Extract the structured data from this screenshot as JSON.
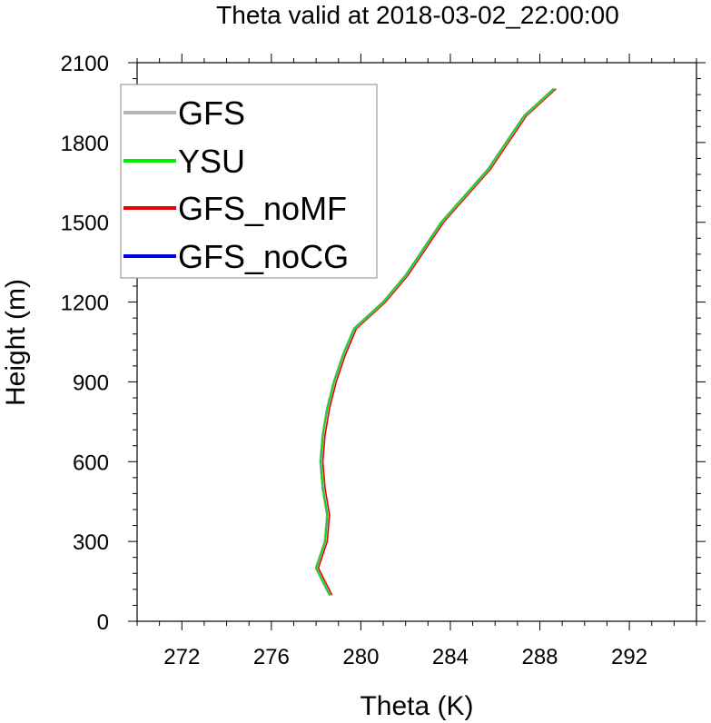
{
  "chart_data": {
    "type": "line",
    "title": "Theta valid at 2018-03-02_22:00:00",
    "xlabel": "Theta (K)",
    "ylabel": "Height (m)",
    "xlim": [
      270,
      295
    ],
    "ylim": [
      0,
      2100
    ],
    "xticks": [
      272,
      276,
      280,
      284,
      288,
      292
    ],
    "yticks": [
      0,
      300,
      600,
      900,
      1200,
      1500,
      1800,
      2100
    ],
    "grid": false,
    "legend_position": "top-left",
    "series": [
      {
        "name": "GFS",
        "color": "#b4b4b4",
        "x": [
          278.6,
          278.0,
          278.4,
          278.5,
          278.3,
          278.2,
          278.3,
          278.5,
          278.8,
          279.2,
          279.7,
          281.0,
          282.0,
          283.6,
          285.7,
          287.3,
          288.6
        ],
        "y": [
          100,
          200,
          300,
          400,
          500,
          600,
          700,
          800,
          900,
          1000,
          1100,
          1200,
          1300,
          1500,
          1700,
          1900,
          2000
        ]
      },
      {
        "name": "YSU",
        "color": "#00ee00",
        "x": [
          278.6,
          278.0,
          278.4,
          278.5,
          278.3,
          278.2,
          278.3,
          278.5,
          278.8,
          279.2,
          279.7,
          281.0,
          282.0,
          283.6,
          285.7,
          287.3,
          288.6
        ],
        "y": [
          100,
          200,
          300,
          400,
          500,
          600,
          700,
          800,
          900,
          1000,
          1100,
          1200,
          1300,
          1500,
          1700,
          1900,
          2000
        ]
      },
      {
        "name": "GFS_noMF",
        "color": "#ee0000",
        "x": [
          278.7,
          278.1,
          278.5,
          278.6,
          278.4,
          278.3,
          278.4,
          278.6,
          278.9,
          279.3,
          279.8,
          281.1,
          282.1,
          283.7,
          285.8,
          287.4,
          288.7
        ],
        "y": [
          100,
          200,
          300,
          400,
          500,
          600,
          700,
          800,
          900,
          1000,
          1100,
          1200,
          1300,
          1500,
          1700,
          1900,
          2000
        ]
      },
      {
        "name": "GFS_noCG",
        "color": "#0000ee",
        "x": [
          278.6,
          278.0,
          278.4,
          278.5,
          278.3,
          278.2,
          278.3,
          278.5,
          278.8,
          279.2,
          279.7,
          281.0,
          282.0,
          283.6,
          285.7,
          287.3,
          288.6
        ],
        "y": [
          100,
          200,
          300,
          400,
          500,
          600,
          700,
          800,
          900,
          1000,
          1100,
          1200,
          1300,
          1500,
          1700,
          1900,
          2000
        ]
      }
    ]
  }
}
